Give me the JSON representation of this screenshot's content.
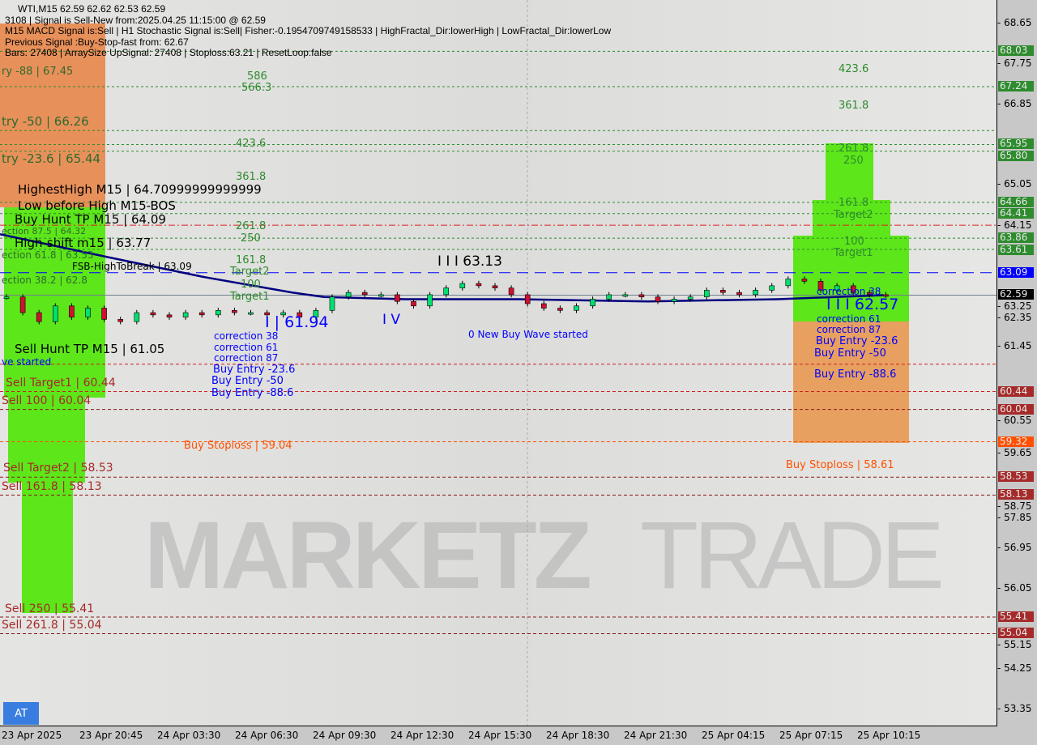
{
  "header": {
    "symbol_line": "WTI,M15  62.59 62.62 62.53 62.59",
    "lines": [
      "3108 | Signal is Sell-New from:2025.04.25 11:15:00 @ 62.59",
      "M15 MACD Signal is:Sell | H1 Stochastic Signal is:Sell| Fisher:-0.1954709749158533 | HighFractal_Dir:lowerHigh | LowFractal_Dir:lowerLow",
      "Previous Signal :Buy-Stop-fast from: 62.67",
      "Bars: 27408 | ArraySize UpSignal: 27408 | Stoploss:63.21 | ResetLoop:false"
    ]
  },
  "watermark": {
    "brand_bold": "MARKETZ",
    "brand_light": "TRADE"
  },
  "at_button": "AT",
  "colors": {
    "bull": "#00e070",
    "bear": "#d01030",
    "ma": "#000080",
    "green_zone": "#55dd11",
    "orange_zone": "#e8905a",
    "buy_line": "#0000ff"
  },
  "price_axis": {
    "ticks": [
      "68.65",
      "67.75",
      "66.85",
      "65.05",
      "64.15",
      "63.25",
      "62.35",
      "61.45",
      "60.55",
      "59.65",
      "58.75",
      "57.85",
      "56.95",
      "56.05",
      "55.15",
      "54.25",
      "53.35"
    ],
    "tags": [
      {
        "value": "68.03",
        "bg": "#2e8b2e"
      },
      {
        "value": "67.24",
        "bg": "#2e8b2e"
      },
      {
        "value": "65.95",
        "bg": "#2e8b2e"
      },
      {
        "value": "65.80",
        "bg": "#2e8b2e"
      },
      {
        "value": "64.66",
        "bg": "#2e8b2e"
      },
      {
        "value": "64.41",
        "bg": "#2e8b2e"
      },
      {
        "value": "63.86",
        "bg": "#2e8b2e"
      },
      {
        "value": "63.61",
        "bg": "#2e8b2e"
      },
      {
        "value": "63.09",
        "bg": "#0000ff"
      },
      {
        "value": "62.59",
        "bg": "#000000"
      },
      {
        "value": "60.44",
        "bg": "#a52a2a"
      },
      {
        "value": "60.04",
        "bg": "#a52a2a"
      },
      {
        "value": "59.32",
        "bg": "#ff5000"
      },
      {
        "value": "58.53",
        "bg": "#a52a2a"
      },
      {
        "value": "58.13",
        "bg": "#a52a2a"
      },
      {
        "value": "55.41",
        "bg": "#a52a2a"
      },
      {
        "value": "55.04",
        "bg": "#a52a2a"
      }
    ]
  },
  "time_axis": [
    "23 Apr 2025",
    "23 Apr 20:45",
    "24 Apr 03:30",
    "24 Apr 06:30",
    "24 Apr 09:30",
    "24 Apr 12:30",
    "24 Apr 15:30",
    "24 Apr 18:30",
    "24 Apr 21:30",
    "25 Apr 04:15",
    "25 Apr 07:15",
    "25 Apr 10:15"
  ],
  "levels": [
    {
      "price": 68.03,
      "color": "#2e8b2e",
      "style": "dotted"
    },
    {
      "price": 67.24,
      "color": "#2e8b2e",
      "style": "dotted"
    },
    {
      "price": 66.26,
      "color": "#2e8b2e",
      "style": "dotted"
    },
    {
      "price": 65.95,
      "color": "#2e8b2e",
      "style": "dotted"
    },
    {
      "price": 65.8,
      "color": "#2e8b2e",
      "style": "dotted"
    },
    {
      "price": 64.66,
      "color": "#2e8b2e",
      "style": "dotted"
    },
    {
      "price": 64.41,
      "color": "#2e8b2e",
      "style": "dotted"
    },
    {
      "price": 64.15,
      "color": "#dd2020",
      "style": "dashdot"
    },
    {
      "price": 63.86,
      "color": "#2e8b2e",
      "style": "dotted"
    },
    {
      "price": 63.61,
      "color": "#2e8b2e",
      "style": "dotted"
    },
    {
      "price": 63.09,
      "color": "#0000ff",
      "style": "longdash"
    },
    {
      "price": 62.59,
      "color": "#708090",
      "style": "solid"
    },
    {
      "price": 61.05,
      "color": "#cc2020",
      "style": "dashed"
    },
    {
      "price": 60.44,
      "color": "#cc2020",
      "style": "dashed"
    },
    {
      "price": 60.04,
      "color": "#8b1a1a",
      "style": "dashed"
    },
    {
      "price": 59.32,
      "color": "#ff5000",
      "style": "dashed"
    },
    {
      "price": 58.53,
      "color": "#8b1a1a",
      "style": "dashed"
    },
    {
      "price": 58.13,
      "color": "#8b1a1a",
      "style": "dashed"
    },
    {
      "price": 55.41,
      "color": "#8b1a1a",
      "style": "dashed"
    },
    {
      "price": 55.04,
      "color": "#8b1a1a",
      "style": "dashed"
    }
  ],
  "labels": [
    {
      "text": "ry -88 | 67.45",
      "color": "#2e6b2e",
      "size": 13,
      "x": 2,
      "p": 67.55
    },
    {
      "text": "586",
      "color": "#2e8b2e",
      "size": 13,
      "x": 305,
      "p": 67.45
    },
    {
      "text": "566.3",
      "color": "#2e8b2e",
      "size": 13,
      "x": 298,
      "p": 67.25
    },
    {
      "text": "try -50 | 66.26",
      "color": "#2e6b2e",
      "size": 15,
      "x": 2,
      "p": 66.42
    },
    {
      "text": "423.6",
      "color": "#2e8b2e",
      "size": 13,
      "x": 291,
      "p": 65.95
    },
    {
      "text": "try -23.6 | 65.44",
      "color": "#2e6b2e",
      "size": 15,
      "x": 2,
      "p": 65.6
    },
    {
      "text": "HighestHigh    M15 | 64.70999999999999",
      "color": "#000",
      "size": 15,
      "x": 22,
      "p": 65.1
    },
    {
      "text": "361.8",
      "color": "#2e8b2e",
      "size": 13,
      "x": 291,
      "p": 65.2
    },
    {
      "text": "Low before High    M15-BOS",
      "color": "#000",
      "size": 15,
      "x": 22,
      "p": 64.55
    },
    {
      "text": "Buy Hunt TP M15 | 64.09",
      "color": "#000",
      "size": 15,
      "x": 18,
      "p": 64.25
    },
    {
      "text": "ection 87.5 | 64.32",
      "color": "#2e6b2e",
      "size": 11,
      "x": 2,
      "p": 64.1
    },
    {
      "text": "261.8",
      "color": "#2e8b2e",
      "size": 13,
      "x": 291,
      "p": 64.1
    },
    {
      "text": "250",
      "color": "#2e8b2e",
      "size": 13,
      "x": 297,
      "p": 63.95
    },
    {
      "text": "High-shift m15 | 63.77",
      "color": "#000",
      "size": 15,
      "x": 18,
      "p": 63.9
    },
    {
      "text": "ection 61.8 | 63.53",
      "color": "#2e6b2e",
      "size": 12,
      "x": 2,
      "p": 63.6
    },
    {
      "text": "FSB-HighToBreak | 63.09",
      "color": "#000",
      "size": 12,
      "x": 89,
      "p": 63.32
    },
    {
      "text": "161.8",
      "color": "#2e8b2e",
      "size": 13,
      "x": 291,
      "p": 63.35
    },
    {
      "text": "Target2",
      "color": "#2e8b2e",
      "size": 13,
      "x": 284,
      "p": 63.12
    },
    {
      "text": "100",
      "color": "#2e8b2e",
      "size": 13,
      "x": 297,
      "p": 62.8
    },
    {
      "text": "Target1",
      "color": "#2e8b2e",
      "size": 13,
      "x": 284,
      "p": 62.58
    },
    {
      "text": "ection 38.2 | 62.8",
      "color": "#2e6b2e",
      "size": 12,
      "x": 2,
      "p": 62.9
    },
    {
      "text": "correction 38",
      "color": "#0000ff",
      "size": 12,
      "x": 264,
      "p": 61.95
    },
    {
      "text": "correction 61",
      "color": "#0000ff",
      "size": 12,
      "x": 264,
      "p": 61.75
    },
    {
      "text": "I | 61.94",
      "color": "#0000ff",
      "size": 19,
      "x": 327,
      "p": 61.95
    },
    {
      "text": "correction 87",
      "color": "#0000ff",
      "size": 12,
      "x": 264,
      "p": 61.5
    },
    {
      "text": "Sell Hunt TP M15 | 61.05",
      "color": "#000",
      "size": 15,
      "x": 18,
      "p": 61.35
    },
    {
      "text": "ve started",
      "color": "#0000ff",
      "size": 12,
      "x": 2,
      "p": 61.1
    },
    {
      "text": "Buy Entry -23.6",
      "color": "#0000ff",
      "size": 13,
      "x": 263,
      "p": 61.15
    },
    {
      "text": "Buy Entry -50",
      "color": "#0000ff",
      "size": 13,
      "x": 261,
      "p": 60.9
    },
    {
      "text": "Buy Entry -88.6",
      "color": "#0000ff",
      "size": 13,
      "x": 261,
      "p": 60.55
    },
    {
      "text": "Sell Target1 | 60.44",
      "color": "#a52a2a",
      "size": 14,
      "x": 7,
      "p": 60.6
    },
    {
      "text": "Sell 100 | 60.04",
      "color": "#a52a2a",
      "size": 14,
      "x": 2,
      "p": 60.2
    },
    {
      "text": "Buy Stoploss | 59.04",
      "color": "#ff5000",
      "size": 13,
      "x": 227,
      "p": 59.2
    },
    {
      "text": "Sell Target2 | 58.53",
      "color": "#a52a2a",
      "size": 14,
      "x": 4,
      "p": 58.7
    },
    {
      "text": "Sell 161.8 | 58.13",
      "color": "#a52a2a",
      "size": 14,
      "x": 2,
      "p": 58.3
    },
    {
      "text": "Sell  250 | 55.41",
      "color": "#a52a2a",
      "size": 14,
      "x": 6,
      "p": 55.57
    },
    {
      "text": "Sell 261.8 | 55.04",
      "color": "#a52a2a",
      "size": 14,
      "x": 2,
      "p": 55.2
    },
    {
      "text": "I I I 63.13",
      "color": "#000",
      "size": 17,
      "x": 540,
      "p": 63.3
    },
    {
      "text": "I V",
      "color": "#0000ff",
      "size": 17,
      "x": 472,
      "p": 62.0
    },
    {
      "text": "0 New Buy Wave started",
      "color": "#0000ff",
      "size": 12,
      "x": 578,
      "p": 61.7
    },
    {
      "text": "423.6",
      "color": "#2e8b2e",
      "size": 13,
      "x": 1035,
      "p": 67.6
    },
    {
      "text": "361.8",
      "color": "#2e8b2e",
      "size": 13,
      "x": 1035,
      "p": 66.8
    },
    {
      "text": "261.8",
      "color": "#2e8b2e",
      "size": 13,
      "x": 1035,
      "p": 65.83
    },
    {
      "text": "250",
      "color": "#2e8b2e",
      "size": 13,
      "x": 1041,
      "p": 65.68
    },
    {
      "text": "161.8",
      "color": "#2e8b2e",
      "size": 13,
      "x": 1035,
      "p": 64.62
    },
    {
      "text": "Target2",
      "color": "#2e8b2e",
      "size": 13,
      "x": 1029,
      "p": 64.38
    },
    {
      "text": "100",
      "color": "#2e8b2e",
      "size": 13,
      "x": 1042,
      "p": 63.76
    },
    {
      "text": "Target1",
      "color": "#2e8b2e",
      "size": 13,
      "x": 1029,
      "p": 63.52
    },
    {
      "text": "correction 38",
      "color": "#0000ff",
      "size": 12,
      "x": 1008,
      "p": 62.65
    },
    {
      "text": "correction 61",
      "color": "#0000ff",
      "size": 12,
      "x": 1008,
      "p": 62.45
    },
    {
      "text": "I I I 62.57",
      "color": "#0000ff",
      "size": 19,
      "x": 1020,
      "p": 62.55
    },
    {
      "text": "correction 87",
      "color": "#0000ff",
      "size": 12,
      "x": 1008,
      "p": 62.1
    },
    {
      "text": "Buy Entry -23.6",
      "color": "#0000ff",
      "size": 13,
      "x": 1007,
      "p": 61.6
    },
    {
      "text": "Buy Entry -50",
      "color": "#0000ff",
      "size": 13,
      "x": 1005,
      "p": 61.27
    },
    {
      "text": "Buy Entry -88.6",
      "color": "#0000ff",
      "size": 13,
      "x": 1005,
      "p": 60.8
    },
    {
      "text": "Buy Stoploss | 58.61",
      "color": "#ff5000",
      "size": 13,
      "x": 970,
      "p": 58.78
    }
  ],
  "zones": [
    {
      "x1": 0,
      "x2": 130,
      "p1": 68.65,
      "p2": 64.55,
      "color": "#e8905a"
    },
    {
      "x1": 5,
      "x2": 130,
      "p1": 64.55,
      "p2": 60.3,
      "color": "#5de61a"
    },
    {
      "x1": 10,
      "x2": 105,
      "p1": 60.3,
      "p2": 58.4,
      "color": "#5de61a"
    },
    {
      "x1": 27,
      "x2": 90,
      "p1": 58.4,
      "p2": 55.5,
      "color": "#5de61a"
    },
    {
      "x1": 1019,
      "x2": 1078,
      "p1": 65.98,
      "p2": 64.72,
      "color": "#5de61a"
    },
    {
      "x1": 1003,
      "x2": 1099,
      "p1": 64.72,
      "p2": 63.91,
      "color": "#5de61a"
    },
    {
      "x1": 979,
      "x2": 1122,
      "p1": 63.91,
      "p2": 62.0,
      "color": "#5de61a"
    },
    {
      "x1": 979,
      "x2": 1122,
      "p1": 62.0,
      "p2": 59.3,
      "color": "#e8a060"
    }
  ],
  "candles": [
    62.55,
    62.2,
    62.0,
    62.35,
    62.1,
    62.3,
    62.05,
    62.0,
    62.2,
    62.15,
    62.1,
    62.2,
    62.15,
    62.25,
    62.2,
    62.2,
    62.15,
    62.2,
    62.1,
    62.25,
    62.55,
    62.65,
    62.6,
    62.6,
    62.45,
    62.35,
    62.6,
    62.75,
    62.85,
    62.8,
    62.75,
    62.6,
    62.4,
    62.3,
    62.25,
    62.35,
    62.5,
    62.6,
    62.6,
    62.55,
    62.45,
    62.5,
    62.55,
    62.7,
    62.65,
    62.6,
    62.7,
    62.8,
    62.95,
    62.9,
    62.7,
    62.8,
    62.65,
    62.6,
    62.59
  ],
  "ma": [
    [
      0,
      63.95
    ],
    [
      130,
      63.45
    ],
    [
      250,
      63.0
    ],
    [
      360,
      62.65
    ],
    [
      400,
      62.55
    ],
    [
      500,
      62.5
    ],
    [
      640,
      62.5
    ],
    [
      800,
      62.45
    ],
    [
      960,
      62.5
    ],
    [
      1090,
      62.59
    ]
  ]
}
